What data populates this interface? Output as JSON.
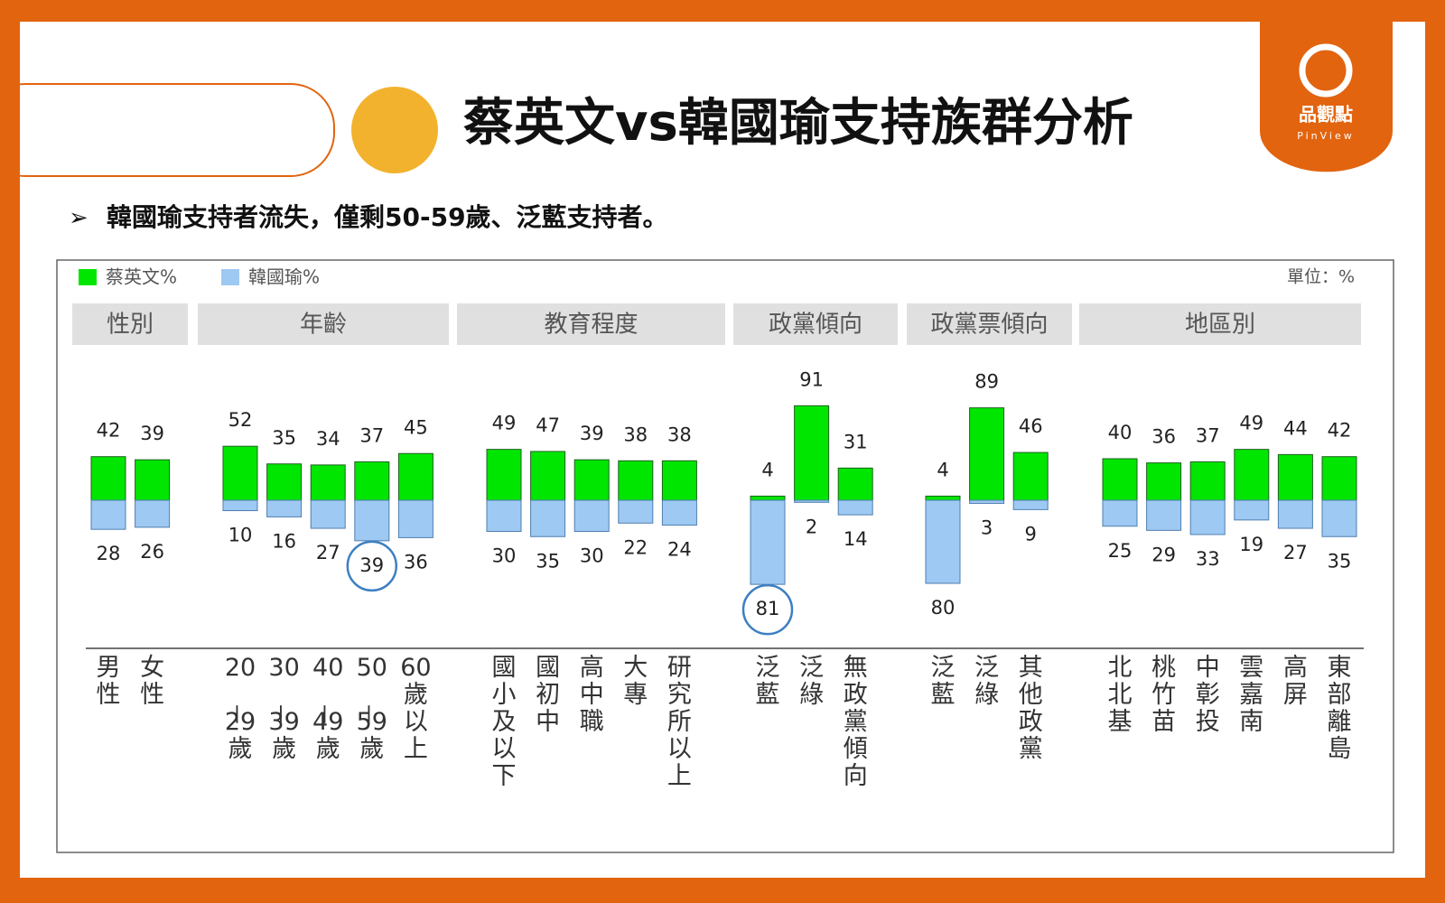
{
  "header": {
    "title": "蔡英文vs韓國瑜支持族群分析",
    "subtitle": "韓國瑜支持者流失，僅剩50-59歲、泛藍支持者。",
    "logo_text": "品觀點",
    "logo_brand": "PinView"
  },
  "chart_data": {
    "type": "diverging-bar",
    "unit_label": "單位：%",
    "groups": [
      {
        "name": "性別",
        "categories": [
          "男性",
          "女性"
        ]
      },
      {
        "name": "年齡",
        "categories": [
          "20－29歲",
          "30－39歲",
          "40－49歲",
          "50－59歲",
          "60歲以上"
        ]
      },
      {
        "name": "教育程度",
        "categories": [
          "國小及以下",
          "國初中",
          "高中職",
          "大專",
          "研究所以上"
        ]
      },
      {
        "name": "政黨傾向",
        "categories": [
          "泛藍",
          "泛綠",
          "無政黨傾向"
        ]
      },
      {
        "name": "政黨票傾向",
        "categories": [
          "泛藍",
          "泛綠",
          "其他政黨"
        ]
      },
      {
        "name": "地區別",
        "categories": [
          "北北基",
          "桃竹苗",
          "中彰投",
          "雲嘉南",
          "高屏",
          "東部離島"
        ]
      }
    ],
    "series": [
      {
        "name": "蔡英文%",
        "color": "#00e600",
        "direction": "up",
        "values": [
          42,
          39,
          52,
          35,
          34,
          37,
          45,
          49,
          47,
          39,
          38,
          38,
          4,
          91,
          31,
          4,
          89,
          46,
          40,
          36,
          37,
          49,
          44,
          42
        ]
      },
      {
        "name": "韓國瑜%",
        "color": "#9ec9f3",
        "direction": "down",
        "values": [
          28,
          26,
          10,
          16,
          27,
          39,
          36,
          30,
          35,
          30,
          22,
          24,
          81,
          2,
          14,
          80,
          3,
          9,
          25,
          29,
          33,
          19,
          27,
          35
        ],
        "circled": [
          false,
          false,
          false,
          false,
          false,
          true,
          false,
          false,
          false,
          false,
          false,
          false,
          true,
          false,
          false,
          false,
          false,
          false,
          false,
          false,
          false,
          false,
          false,
          false
        ],
        "circle_color": "#3d7fc2"
      }
    ]
  }
}
